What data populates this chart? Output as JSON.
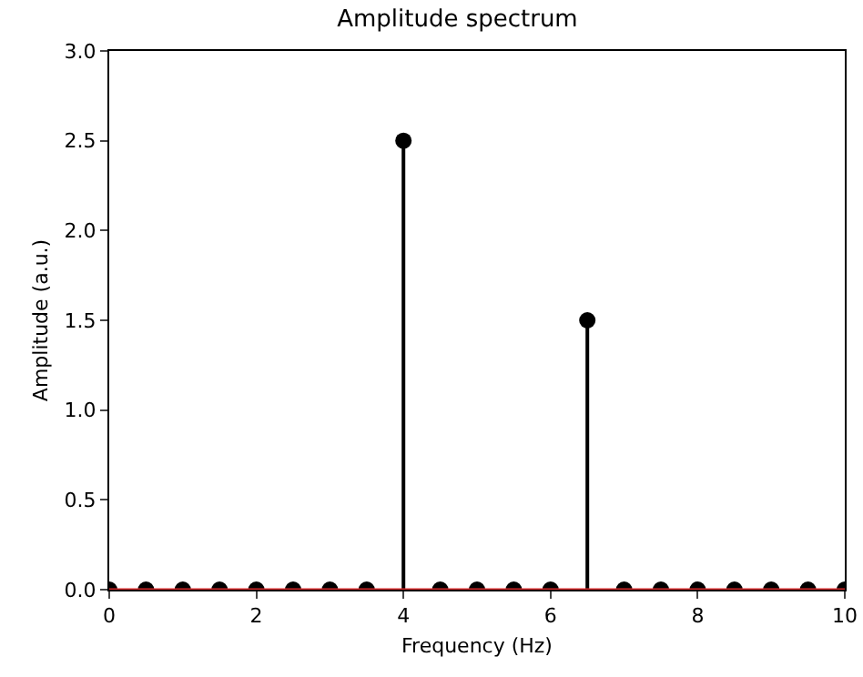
{
  "chart_data": {
    "type": "lollipop",
    "title": "Amplitude spectrum",
    "xlabel": "Frequency (Hz)",
    "ylabel": "Amplitude (a.u.)",
    "x": [
      0,
      0.5,
      1,
      1.5,
      2,
      2.5,
      3,
      3.5,
      4,
      4.5,
      5,
      5.5,
      6,
      6.5,
      7,
      7.5,
      8,
      8.5,
      9,
      9.5,
      10
    ],
    "series": [
      {
        "color": "#000000",
        "values": [
          0,
          0,
          0,
          0,
          0,
          0,
          0,
          0,
          2.5,
          0,
          0,
          0,
          0,
          1.5,
          0,
          0,
          0,
          0,
          0,
          0,
          0
        ]
      }
    ],
    "xlim": [
      0,
      10
    ],
    "xticks": [
      0,
      2,
      4,
      6,
      8,
      10
    ],
    "ylim": [
      0,
      3
    ],
    "yticks": [
      {
        "value": 0,
        "label": "0.0"
      },
      {
        "value": 0.5,
        "label": "0.5"
      },
      {
        "value": 1,
        "label": "1.0"
      },
      {
        "value": 1.5,
        "label": "1.5"
      },
      {
        "value": 2,
        "label": "2.0"
      },
      {
        "value": 2.5,
        "label": "2.5"
      },
      {
        "value": 3,
        "label": "3.0"
      }
    ],
    "ref_lines": [
      {
        "axis": "y",
        "value": 0,
        "color": "#d62728"
      }
    ],
    "marker": "circle"
  }
}
